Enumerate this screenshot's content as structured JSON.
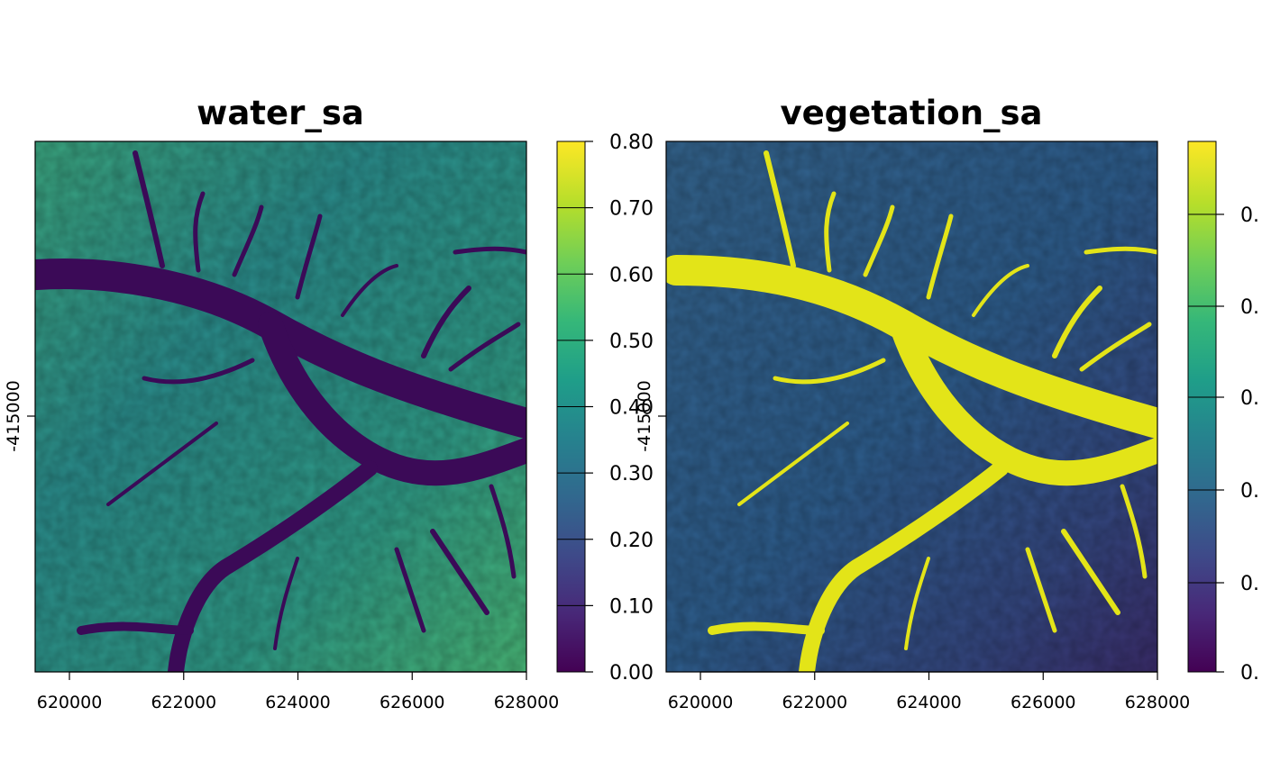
{
  "chart_data": [
    {
      "type": "heatmap",
      "title": "water_sa",
      "x_ticks": [
        620000,
        622000,
        624000,
        626000,
        628000
      ],
      "y_ticks": [
        -415000
      ],
      "xlim": [
        619400,
        628000
      ],
      "colorbar": {
        "palette": "viridis",
        "range": [
          0.0,
          0.8
        ],
        "ticks": [
          "0.00",
          "0.10",
          "0.20",
          "0.30",
          "0.40",
          "0.50",
          "0.60",
          "0.70",
          "0.80"
        ]
      },
      "description_values": {
        "water_channels": 0.0,
        "land": 0.45
      }
    },
    {
      "type": "heatmap",
      "title": "vegetation_sa",
      "x_ticks": [
        620000,
        622000,
        624000,
        626000,
        628000
      ],
      "y_ticks": [
        -415000
      ],
      "xlim": [
        619400,
        628000
      ],
      "colorbar": {
        "palette": "viridis",
        "range": [
          0.0,
          0.8
        ],
        "ticks": [
          "0.",
          "0.",
          "0.",
          "0.",
          "0.",
          "0."
        ]
      },
      "description_values": {
        "water_channels": 0.8,
        "land": 0.3
      }
    }
  ],
  "colors": {
    "viridis_stops": [
      "#440154",
      "#482878",
      "#3e4a89",
      "#31688e",
      "#26828e",
      "#1f9e89",
      "#35b779",
      "#6ece58",
      "#b5de2b",
      "#fde725"
    ],
    "water_land": "#2a8e8c",
    "water_channel": "#3b0a57",
    "veg_land": "#2f5f8a",
    "veg_channel": "#e3e418"
  }
}
